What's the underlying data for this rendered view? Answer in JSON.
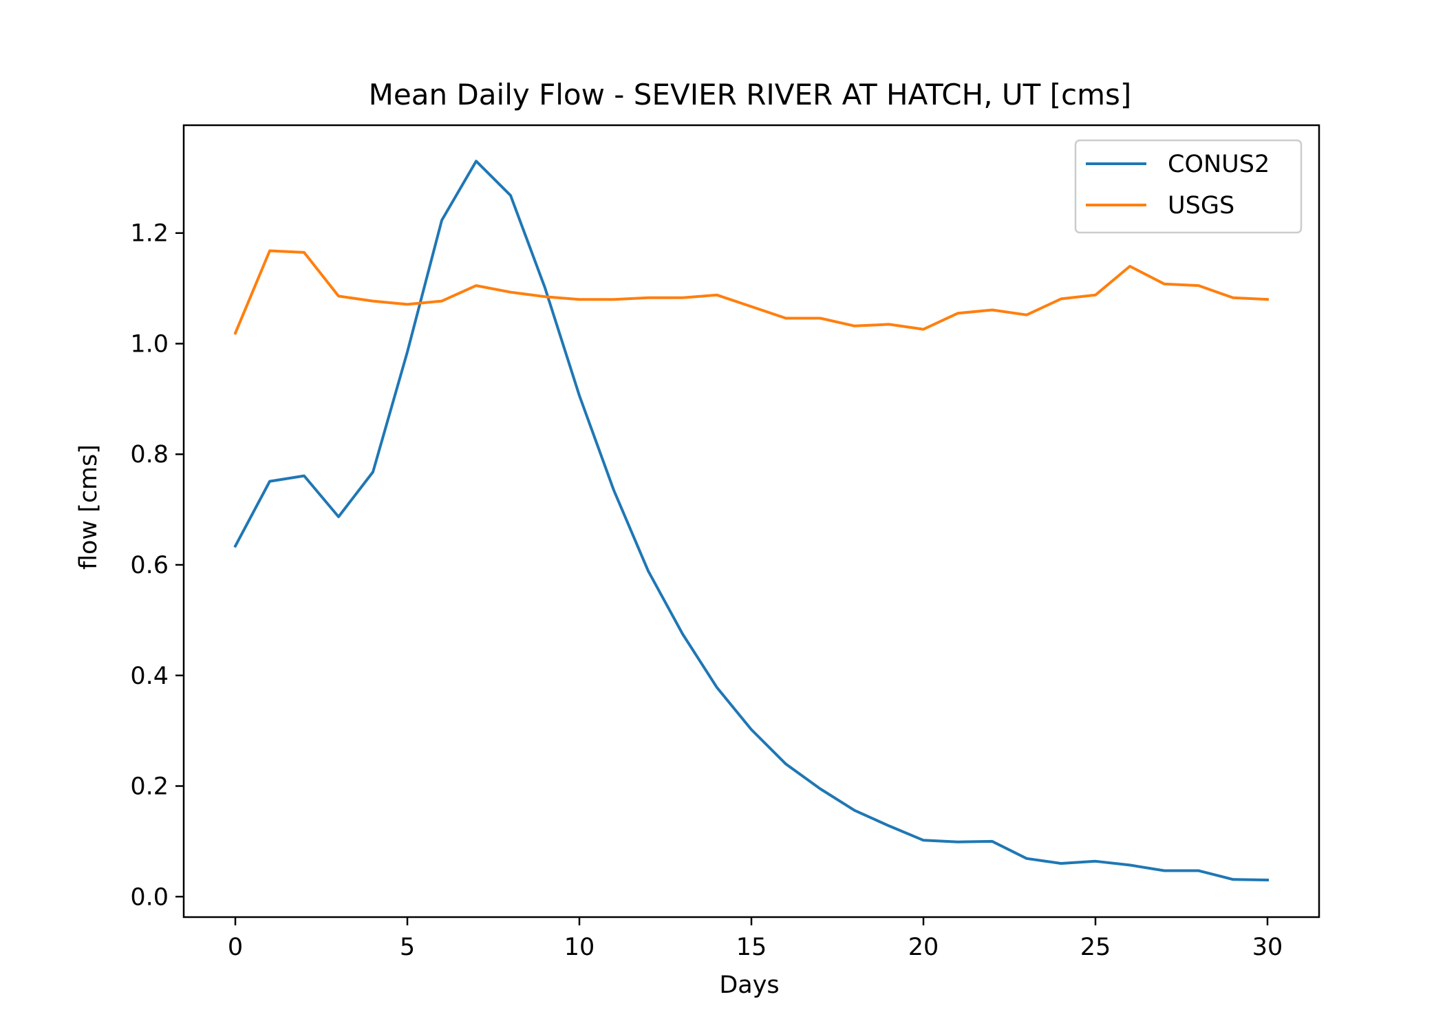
{
  "chart_data": {
    "type": "line",
    "title": "Mean Daily Flow - SEVIER RIVER AT HATCH, UT [cms]",
    "xlabel": "Days",
    "ylabel": "flow [cms]",
    "xlim": [
      -1.5,
      31.5
    ],
    "ylim": [
      -0.037,
      1.395
    ],
    "xticks": [
      0,
      5,
      10,
      15,
      20,
      25,
      30
    ],
    "xtick_labels": [
      "0",
      "5",
      "10",
      "15",
      "20",
      "25",
      "30"
    ],
    "yticks": [
      0.0,
      0.2,
      0.4,
      0.6,
      0.8,
      1.0,
      1.2
    ],
    "ytick_labels": [
      "0.0",
      "0.2",
      "0.4",
      "0.6",
      "0.8",
      "1.0",
      "1.2"
    ],
    "grid": false,
    "legend_position": "top-right",
    "x": [
      0,
      1,
      2,
      3,
      4,
      5,
      6,
      7,
      8,
      9,
      10,
      11,
      12,
      13,
      14,
      15,
      16,
      17,
      18,
      19,
      20,
      21,
      22,
      23,
      24,
      25,
      26,
      27,
      28,
      29,
      30
    ],
    "series": [
      {
        "name": "CONUS2",
        "color": "#1f77b4",
        "values": [
          0.634,
          0.751,
          0.761,
          0.687,
          0.768,
          0.985,
          1.223,
          1.33,
          1.268,
          1.101,
          0.906,
          0.735,
          0.589,
          0.475,
          0.378,
          0.302,
          0.24,
          0.195,
          0.156,
          0.128,
          0.102,
          0.099,
          0.1,
          0.069,
          0.06,
          0.064,
          0.057,
          0.047,
          0.047,
          0.031,
          0.03
        ]
      },
      {
        "name": "USGS",
        "color": "#ff7f0e",
        "values": [
          1.019,
          1.168,
          1.165,
          1.086,
          1.077,
          1.071,
          1.077,
          1.105,
          1.093,
          1.085,
          1.08,
          1.08,
          1.083,
          1.083,
          1.088,
          1.067,
          1.046,
          1.046,
          1.032,
          1.035,
          1.026,
          1.055,
          1.061,
          1.052,
          1.081,
          1.088,
          1.14,
          1.108,
          1.105,
          1.083,
          1.08
        ]
      }
    ]
  }
}
